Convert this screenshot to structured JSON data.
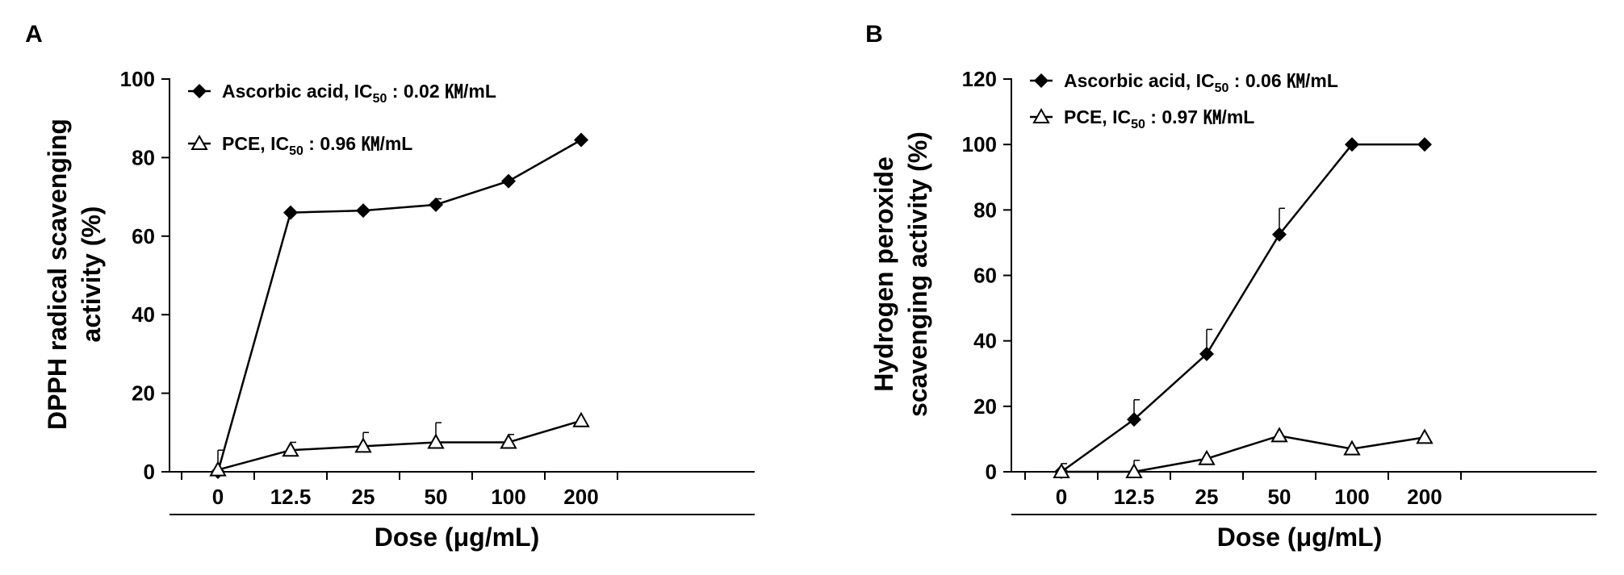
{
  "chart_data": [
    {
      "type": "line",
      "panel_label": "A",
      "categories": [
        "0",
        "12.5",
        "25",
        "50",
        "100",
        "200"
      ],
      "ylim": [
        0,
        100
      ],
      "yticks": [
        0,
        20,
        40,
        60,
        80,
        100
      ],
      "xlabel": "Dose (μg/mL)",
      "ylabel_lines": [
        "DPPH radical scavenging",
        "activity (%)"
      ],
      "legend_position": "top-left",
      "series": [
        {
          "name": "Ascorbic acid",
          "ic50_prefix": "Ascorbic acid, IC",
          "ic50_sub": "50",
          "ic50_value": " : 0.02 ㏎/mL",
          "marker": "filled-diamond",
          "values": [
            0,
            66,
            66.5,
            68,
            74,
            84.5
          ],
          "errors": [
            0,
            0,
            0,
            1.5,
            0,
            0
          ]
        },
        {
          "name": "PCE",
          "ic50_prefix": "PCE, IC",
          "ic50_sub": "50",
          "ic50_value": " : 0.96 ㏎/mL",
          "marker": "open-triangle",
          "values": [
            0.5,
            5.5,
            6.5,
            7.5,
            7.5,
            13
          ],
          "errors": [
            5,
            2,
            3.5,
            5,
            2,
            0
          ]
        }
      ]
    },
    {
      "type": "line",
      "panel_label": "B",
      "categories": [
        "0",
        "12.5",
        "25",
        "50",
        "100",
        "200"
      ],
      "ylim": [
        0,
        120
      ],
      "yticks": [
        0,
        20,
        40,
        60,
        80,
        100,
        120
      ],
      "xlabel": "Dose (μg/mL)",
      "ylabel_lines": [
        "Hydrogen peroxide",
        "scavenging activity (%)"
      ],
      "legend_position": "top-left",
      "series": [
        {
          "name": "Ascorbic acid",
          "ic50_prefix": "Ascorbic acid, IC",
          "ic50_sub": "50",
          "ic50_value": " : 0.06 ㏎/mL",
          "marker": "filled-diamond",
          "values": [
            0,
            16,
            36,
            72.5,
            100,
            100
          ],
          "errors": [
            0,
            6,
            7.5,
            8,
            0,
            0
          ]
        },
        {
          "name": "PCE",
          "ic50_prefix": "PCE, IC",
          "ic50_sub": "50",
          "ic50_value": " : 0.97 ㏎/mL",
          "marker": "open-triangle",
          "values": [
            0,
            0,
            4,
            11,
            7,
            10.5
          ],
          "errors": [
            2.5,
            3.5,
            0,
            0,
            0,
            0
          ]
        }
      ]
    }
  ]
}
